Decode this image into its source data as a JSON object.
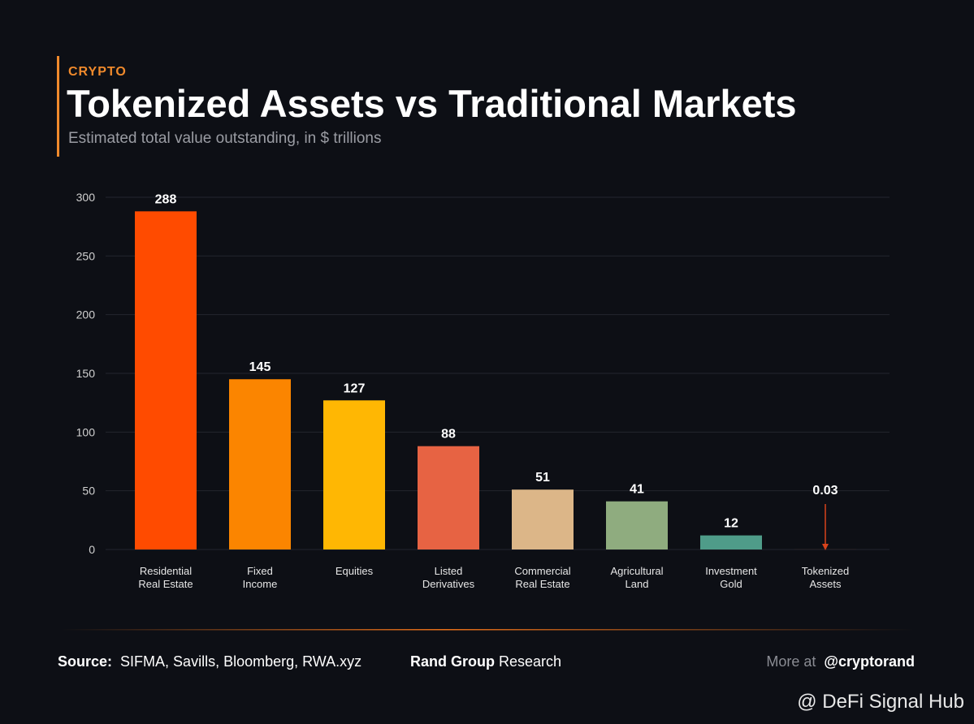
{
  "header": {
    "kicker": "CRYPTO",
    "title": "Tokenized Assets vs Traditional Markets",
    "subtitle": "Estimated total value outstanding, in $ trillions"
  },
  "chart_data": {
    "type": "bar",
    "categories": [
      "Residential\nReal Estate",
      "Fixed\nIncome",
      "Equities",
      "Listed\nDerivatives",
      "Commercial\nReal Estate",
      "Agricultural\nLand",
      "Investment\nGold",
      "Tokenized\nAssets"
    ],
    "values": [
      288,
      145,
      127,
      88,
      51,
      41,
      12,
      0.03
    ],
    "colors": [
      "#ff4b00",
      "#fb8500",
      "#ffb703",
      "#e76343",
      "#dcb688",
      "#8fac7f",
      "#4f9c89",
      "#d8431c"
    ],
    "ylim": [
      0,
      300
    ],
    "yticks": [
      0,
      50,
      100,
      150,
      200,
      250,
      300
    ],
    "grid": true
  },
  "footer": {
    "source_label": "Source:",
    "source": "SIFMA, Savills, Bloomberg, RWA.xyz",
    "brand": "Rand Group",
    "brand_suffix": "Research",
    "more_label": "More at",
    "handle": "@cryptorand",
    "watermark": "@ DeFi Signal Hub"
  }
}
